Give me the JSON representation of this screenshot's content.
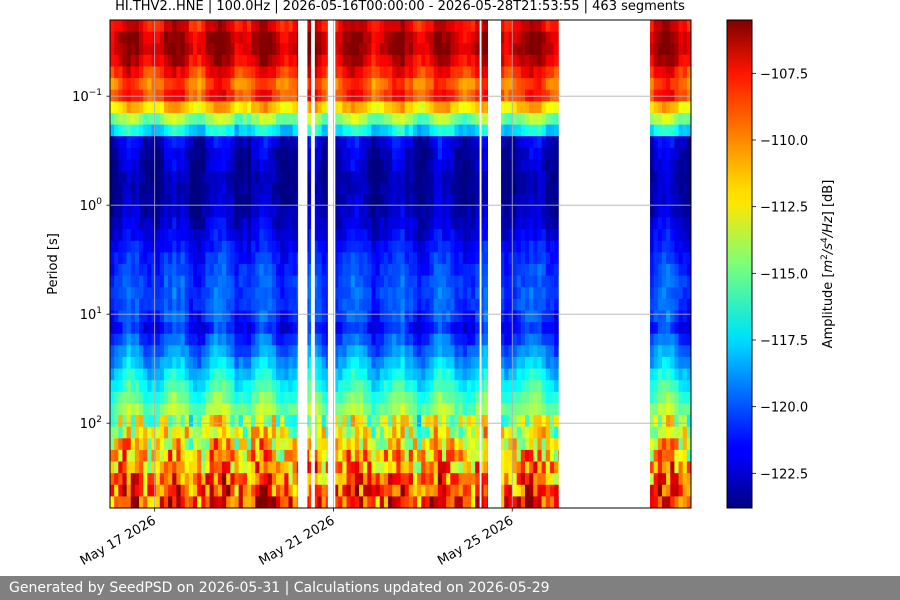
{
  "chart_data": {
    "type": "heatmap",
    "title": "HI.THV2..HNE | 100.0Hz | 2026-05-16T00:00:00 - 2026-05-28T21:53:55 | 463 segments",
    "xlabel": "",
    "ylabel": "Period [s]",
    "y_scale": "log",
    "y_inverted": true,
    "ylim": [
      0.02,
      600
    ],
    "y_ticks": [
      {
        "value": 0.1,
        "base": "10",
        "exp": "−1"
      },
      {
        "value": 1,
        "base": "10",
        "exp": "0"
      },
      {
        "value": 10,
        "base": "10",
        "exp": "1"
      },
      {
        "value": 100,
        "base": "10",
        "exp": "2"
      }
    ],
    "xlim": [
      "2026-05-16",
      "2026-05-29"
    ],
    "x_ticks": [
      {
        "date": "2026-05-17",
        "label": "May 17 2026"
      },
      {
        "date": "2026-05-21",
        "label": "May 21 2026"
      },
      {
        "date": "2026-05-25",
        "label": "May 25 2026"
      }
    ],
    "grid": true,
    "colorbar": {
      "label": "Amplitude [m²/s⁴/Hz] [dB]",
      "label_parts": [
        "Amplitude [",
        "m",
        "2",
        "/s",
        "4",
        "/Hz",
        "] [dB]"
      ],
      "range": [
        -123.8,
        -105.5
      ],
      "ticks": [
        {
          "value": -107.5,
          "label": "−107.5"
        },
        {
          "value": -110.0,
          "label": "−110.0"
        },
        {
          "value": -112.5,
          "label": "−112.5"
        },
        {
          "value": -115.0,
          "label": "−115.0"
        },
        {
          "value": -117.5,
          "label": "−117.5"
        },
        {
          "value": -120.0,
          "label": "−120.0"
        },
        {
          "value": -122.5,
          "label": "−122.5"
        }
      ],
      "colormap": "jet"
    },
    "data_gaps": [
      [
        "2026-05-20T05:00",
        "2026-05-20T10:00"
      ],
      [
        "2026-05-20T12:00",
        "2026-05-20T14:00"
      ],
      [
        "2026-05-20T21:00",
        "2026-05-21T01:00"
      ],
      [
        "2026-05-24T06:30",
        "2026-05-24T07:30"
      ],
      [
        "2026-05-24T11:00",
        "2026-05-24T18:00"
      ],
      [
        "2026-05-26T01:00",
        "2026-05-28T02:00"
      ]
    ],
    "segments": 463
  },
  "footer": {
    "text": "Generated by SeedPSD on 2026-05-31 | Calculations updated on 2026-05-29"
  }
}
